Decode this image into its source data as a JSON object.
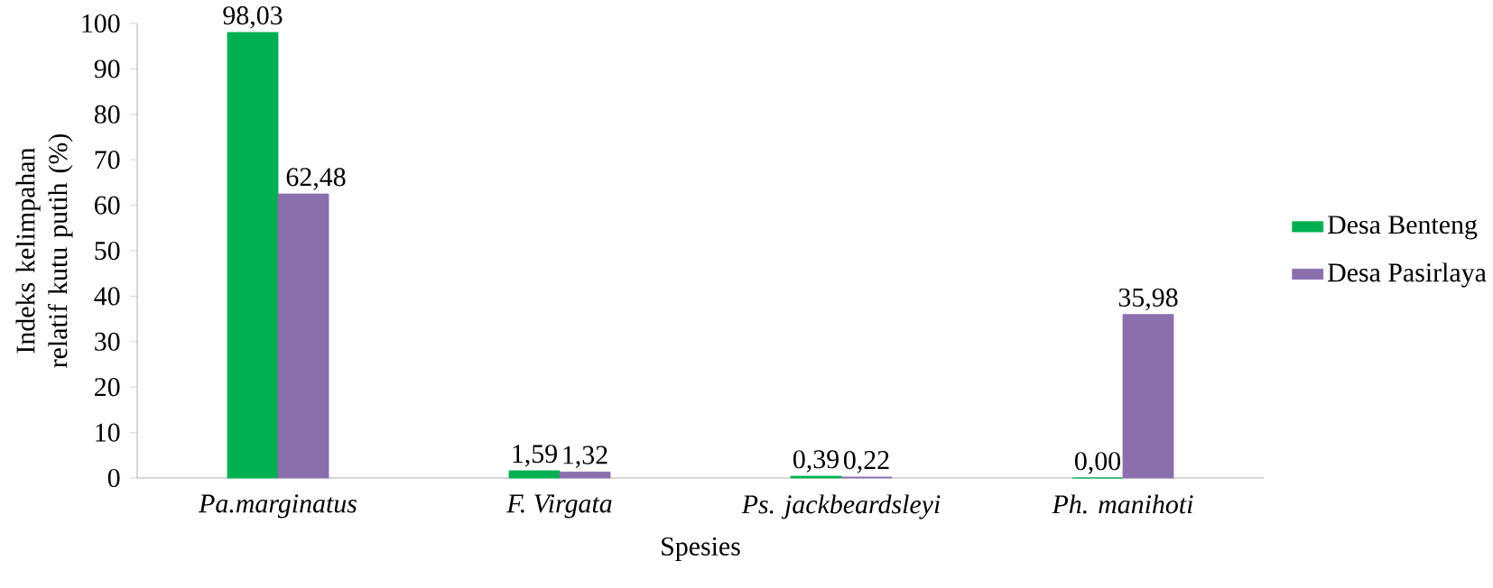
{
  "chart_data": {
    "type": "bar",
    "xlabel": "Spesies",
    "ylabel": "Indeks kelimpahan relatif kutu putih (%)",
    "categories": [
      "Pa.marginatus",
      "F. Virgata",
      "Ps. jackbeardsleyi",
      "Ph. manihoti"
    ],
    "series": [
      {
        "name": "Desa Benteng",
        "color": "#00b050",
        "values": [
          98.03,
          1.59,
          0.39,
          0.0
        ],
        "value_labels": [
          "98,03",
          "1,59",
          "0,39",
          "0,00"
        ]
      },
      {
        "name": "Desa Pasirlaya",
        "color": "#8b6fad",
        "values": [
          62.48,
          1.32,
          0.22,
          35.98
        ],
        "value_labels": [
          "62,48",
          "1,32",
          "0,22",
          "35,98"
        ]
      }
    ],
    "ylim": [
      0,
      100
    ],
    "yticks": [
      0,
      10,
      20,
      30,
      40,
      50,
      60,
      70,
      80,
      90,
      100
    ],
    "grid": false,
    "legend": "right"
  }
}
